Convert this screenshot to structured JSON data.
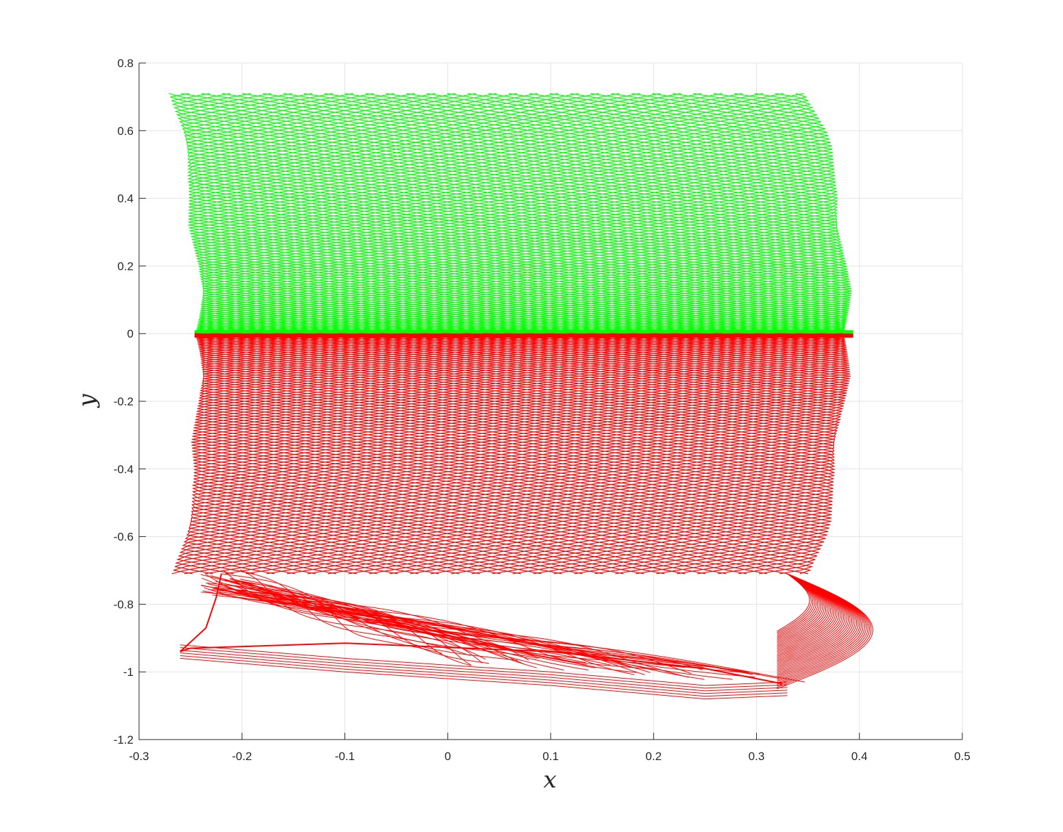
{
  "chart_data": {
    "type": "line",
    "title": "",
    "xlabel": "x",
    "ylabel": "y",
    "xlim": [
      -0.3,
      0.5
    ],
    "ylim": [
      -1.2,
      0.8
    ],
    "xticks": [
      -0.3,
      -0.2,
      -0.1,
      0,
      0.1,
      0.2,
      0.3,
      0.4,
      0.5
    ],
    "yticks": [
      0.8,
      0.6,
      0.4,
      0.2,
      0,
      -0.2,
      -0.4,
      -0.6,
      -0.8,
      -1,
      -1.2
    ],
    "xtick_labels": [
      "-0.3",
      "-0.2",
      "-0.1",
      "0",
      "0.1",
      "0.2",
      "0.3",
      "0.4",
      "0.5"
    ],
    "ytick_labels": [
      "0.8",
      "0.6",
      "0.4",
      "0.2",
      "0",
      "-0.2",
      "-0.4",
      "-0.6",
      "-0.8",
      "-1",
      "-1.2"
    ],
    "grid": true,
    "legend": "none",
    "series": [
      {
        "color": "#00ff00",
        "region": "upper",
        "curve_count": 64,
        "start_x_range": [
          -0.246,
          0.394
        ],
        "start_y": 0,
        "end_y": 0.71,
        "left_boundary": {
          "x": [
            -0.246,
            -0.248,
            -0.255,
            -0.265,
            -0.275
          ],
          "y": [
            0,
            0.2,
            0.4,
            0.6,
            0.71
          ]
        },
        "right_boundary": {
          "x": [
            0.394,
            0.392,
            0.385,
            0.37,
            0.352
          ],
          "y": [
            0,
            0.2,
            0.4,
            0.6,
            0.71
          ]
        }
      },
      {
        "color": "#ff0000",
        "region": "lower",
        "curve_count": 64,
        "start_x_range": [
          -0.246,
          0.394
        ],
        "start_y": 0,
        "end_y": -0.71,
        "left_boundary": {
          "x": [
            -0.246,
            -0.248,
            -0.25,
            -0.262,
            -0.28,
            -0.26
          ],
          "y": [
            0,
            -0.2,
            -0.4,
            -0.6,
            -0.8,
            -0.95
          ]
        },
        "right_boundary": {
          "x": [
            0.394,
            0.39,
            0.382,
            0.37,
            0.345,
            0.36,
            0.415
          ],
          "y": [
            0,
            -0.2,
            -0.4,
            -0.6,
            -0.8,
            -1.05,
            -0.71
          ]
        },
        "bottom_envelope": {
          "x": [
            -0.26,
            -0.1,
            0.1,
            0.25,
            0.33
          ],
          "y": [
            -0.96,
            -1.0,
            -1.04,
            -1.08,
            -1.07
          ]
        }
      }
    ]
  }
}
